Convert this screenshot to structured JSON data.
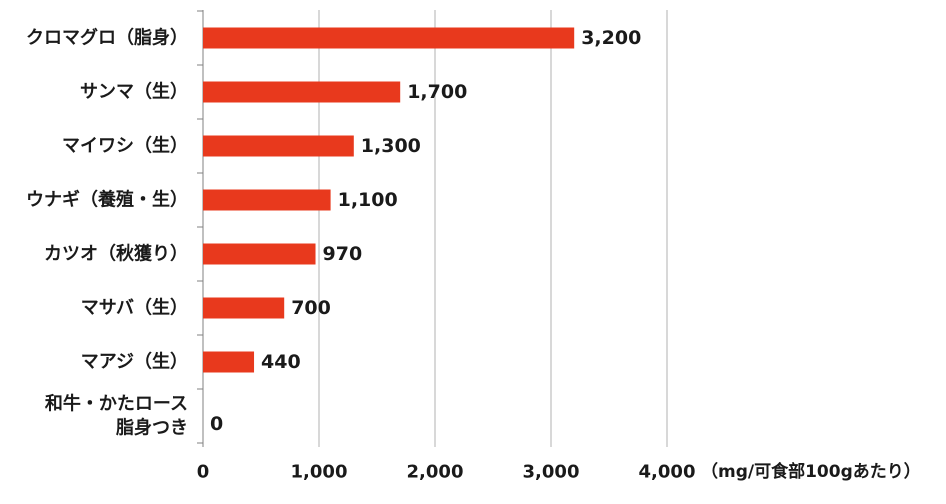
{
  "chart_data": {
    "type": "bar",
    "orientation": "horizontal",
    "categories": [
      [
        "クロマグロ（脂身）"
      ],
      [
        "サンマ（生）"
      ],
      [
        "マイワシ（生）"
      ],
      [
        "ウナギ（養殖・生）"
      ],
      [
        "カツオ（秋獲り）"
      ],
      [
        "マサバ（生）"
      ],
      [
        "マアジ（生）"
      ],
      [
        "和牛・かたロース",
        "脂身つき"
      ]
    ],
    "values": [
      3200,
      1700,
      1300,
      1100,
      970,
      700,
      440,
      0
    ],
    "data_labels": [
      "3,200",
      "1,700",
      "1,300",
      "1,100",
      "970",
      "700",
      "440",
      "0"
    ],
    "xlim": [
      0,
      4000
    ],
    "x_ticks": [
      0,
      1000,
      2000,
      3000,
      4000
    ],
    "x_tick_labels": [
      "0",
      "1,000",
      "2,000",
      "3,000",
      "4,000"
    ],
    "unit_label": "（mg/可食部100gあたり）",
    "grid": "vertical",
    "bar_color": "#e8391d",
    "grid_color": "#b0b0b0",
    "axis_color": "#808080"
  }
}
